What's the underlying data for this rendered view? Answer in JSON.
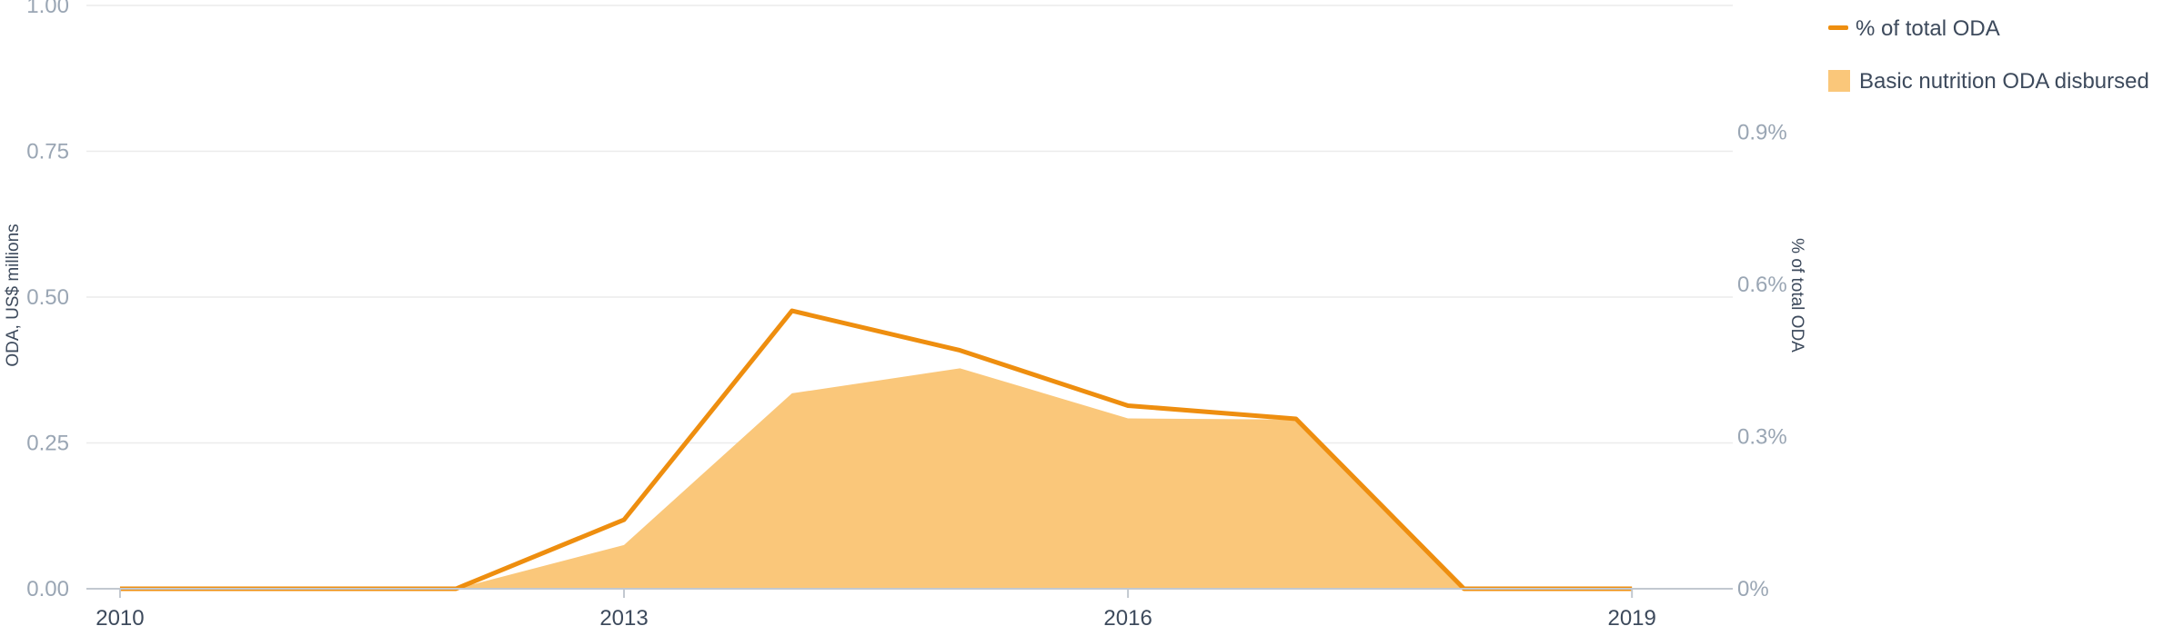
{
  "chart_data": {
    "type": "area",
    "x": [
      2010,
      2011,
      2012,
      2013,
      2014,
      2015,
      2016,
      2017,
      2018,
      2019
    ],
    "series": [
      {
        "name": "Basic nutrition ODA disbursed",
        "kind": "area",
        "axis": "left",
        "values": [
          0,
          0,
          0,
          0.075,
          0.335,
          0.378,
          0.292,
          0.29,
          0,
          0
        ]
      },
      {
        "name": "% of total ODA",
        "kind": "line",
        "axis": "right",
        "values": [
          0,
          0,
          0,
          0.136,
          0.548,
          0.47,
          0.361,
          0.335,
          0,
          0
        ]
      }
    ],
    "xticks": [
      "2010",
      "2013",
      "2016",
      "2019"
    ],
    "yticks_left": [
      "0.00",
      "0.25",
      "0.50",
      "0.75",
      "1.00"
    ],
    "yticks_right": [
      "0%",
      "0.3%",
      "0.6%",
      "0.9%"
    ],
    "ylabel": "ODA, US$ millions",
    "ylabel_right": "% of total ODA",
    "ylim": [
      0,
      1
    ],
    "ylim_right": [
      0,
      1.15
    ],
    "grid": true,
    "legend_position": "top-right",
    "colors": {
      "line": "#ee8e0f",
      "area": "#fac77a",
      "grid": "#ececec",
      "axis": "#c2c8d0"
    }
  }
}
